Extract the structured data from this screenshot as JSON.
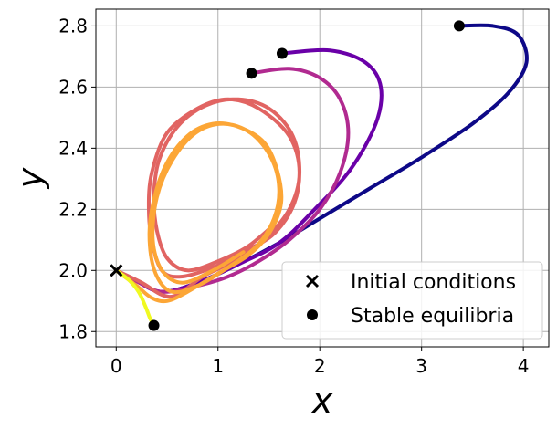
{
  "chart_data": {
    "type": "line",
    "title": "",
    "xlabel": "x",
    "ylabel": "y",
    "xlim": [
      -0.2,
      4.25
    ],
    "ylim": [
      1.75,
      2.855
    ],
    "xticks": [
      0,
      1,
      2,
      3,
      4
    ],
    "yticks": [
      1.8,
      2.0,
      2.2,
      2.4,
      2.6,
      2.8
    ],
    "xtick_labels": [
      "0",
      "1",
      "2",
      "3",
      "4"
    ],
    "ytick_labels": [
      "1.8",
      "2.0",
      "2.2",
      "2.4",
      "2.6",
      "2.8"
    ],
    "grid": true,
    "colormap": "plasma",
    "legend": {
      "placement": "lower right",
      "entries": [
        {
          "label": "Initial conditions",
          "marker": "x"
        },
        {
          "label": "Stable equilibria",
          "marker": "o"
        }
      ]
    },
    "initial_condition": {
      "x": 0.0,
      "y": 2.0
    },
    "stable_equilibria": [
      {
        "x": 3.37,
        "y": 2.8
      },
      {
        "x": 1.63,
        "y": 2.71
      },
      {
        "x": 1.33,
        "y": 2.645
      },
      {
        "x": 0.37,
        "y": 1.82
      }
    ],
    "trajectories": [
      {
        "color": "#0d0887",
        "points": [
          [
            0,
            2.0
          ],
          [
            0.2,
            1.965
          ],
          [
            0.45,
            1.93
          ],
          [
            0.8,
            1.96
          ],
          [
            1.2,
            2.02
          ],
          [
            1.6,
            2.09
          ],
          [
            2.0,
            2.17
          ],
          [
            2.5,
            2.27
          ],
          [
            3.0,
            2.37
          ],
          [
            3.5,
            2.48
          ],
          [
            3.85,
            2.58
          ],
          [
            4.03,
            2.68
          ],
          [
            3.95,
            2.77
          ],
          [
            3.7,
            2.8
          ],
          [
            3.37,
            2.8
          ]
        ]
      },
      {
        "color": "#6a00a8",
        "points": [
          [
            0,
            2.0
          ],
          [
            0.2,
            1.965
          ],
          [
            0.45,
            1.93
          ],
          [
            0.8,
            1.96
          ],
          [
            1.2,
            2.02
          ],
          [
            1.6,
            2.09
          ],
          [
            1.95,
            2.2
          ],
          [
            2.3,
            2.33
          ],
          [
            2.55,
            2.48
          ],
          [
            2.6,
            2.6
          ],
          [
            2.45,
            2.68
          ],
          [
            2.1,
            2.72
          ],
          [
            1.63,
            2.71
          ]
        ]
      },
      {
        "color": "#b12a90",
        "points": [
          [
            0,
            2.0
          ],
          [
            0.2,
            1.965
          ],
          [
            0.45,
            1.93
          ],
          [
            0.8,
            1.95
          ],
          [
            1.1,
            1.98
          ],
          [
            1.4,
            2.03
          ],
          [
            1.7,
            2.1
          ],
          [
            2.0,
            2.2
          ],
          [
            2.2,
            2.32
          ],
          [
            2.28,
            2.45
          ],
          [
            2.2,
            2.56
          ],
          [
            2.0,
            2.63
          ],
          [
            1.7,
            2.66
          ],
          [
            1.33,
            2.645
          ]
        ]
      },
      {
        "color": "#e16462",
        "points": [
          [
            0,
            2.0
          ],
          [
            0.25,
            1.96
          ],
          [
            0.45,
            1.92
          ],
          [
            0.6,
            1.92
          ],
          [
            0.85,
            1.98
          ],
          [
            1.15,
            2.03
          ],
          [
            1.45,
            2.1
          ],
          [
            1.7,
            2.2
          ],
          [
            1.8,
            2.32
          ],
          [
            1.7,
            2.44
          ],
          [
            1.4,
            2.53
          ],
          [
            1.1,
            2.56
          ],
          [
            0.8,
            2.53
          ],
          [
            0.5,
            2.45
          ],
          [
            0.35,
            2.32
          ],
          [
            0.32,
            2.2
          ],
          [
            0.36,
            2.08
          ],
          [
            0.46,
            1.995
          ],
          [
            0.65,
            1.98
          ],
          [
            0.95,
            2.01
          ],
          [
            1.25,
            2.06
          ],
          [
            1.55,
            2.12
          ],
          [
            1.75,
            2.22
          ],
          [
            1.8,
            2.34
          ],
          [
            1.72,
            2.45
          ],
          [
            1.5,
            2.53
          ],
          [
            1.2,
            2.56
          ],
          [
            0.88,
            2.54
          ],
          [
            0.6,
            2.47
          ],
          [
            0.42,
            2.36
          ],
          [
            0.37,
            2.24
          ],
          [
            0.4,
            2.13
          ],
          [
            0.5,
            2.04
          ],
          [
            0.7,
            2.0
          ],
          [
            1.0,
            2.03
          ],
          [
            1.3,
            2.08
          ],
          [
            1.55,
            2.15
          ]
        ]
      },
      {
        "color": "#fca636",
        "points": [
          [
            0,
            2.0
          ],
          [
            0.2,
            1.95
          ],
          [
            0.35,
            1.91
          ],
          [
            0.5,
            1.9
          ],
          [
            0.7,
            1.93
          ],
          [
            1.0,
            1.99
          ],
          [
            1.3,
            2.05
          ],
          [
            1.5,
            2.12
          ],
          [
            1.62,
            2.22
          ],
          [
            1.58,
            2.33
          ],
          [
            1.45,
            2.42
          ],
          [
            1.2,
            2.47
          ],
          [
            0.95,
            2.48
          ],
          [
            0.7,
            2.44
          ],
          [
            0.48,
            2.34
          ],
          [
            0.35,
            2.2
          ],
          [
            0.33,
            2.08
          ],
          [
            0.4,
            1.98
          ],
          [
            0.55,
            1.93
          ],
          [
            0.8,
            1.95
          ],
          [
            1.1,
            2.01
          ],
          [
            1.38,
            2.08
          ],
          [
            1.55,
            2.17
          ],
          [
            1.6,
            2.27
          ],
          [
            1.52,
            2.37
          ],
          [
            1.32,
            2.45
          ],
          [
            1.05,
            2.48
          ],
          [
            0.78,
            2.45
          ],
          [
            0.55,
            2.36
          ],
          [
            0.4,
            2.24
          ],
          [
            0.36,
            2.1
          ],
          [
            0.45,
            2.0
          ],
          [
            0.65,
            1.96
          ],
          [
            0.95,
            2.0
          ],
          [
            1.25,
            2.06
          ]
        ]
      },
      {
        "color": "#f0f921",
        "points": [
          [
            0,
            2.0
          ],
          [
            0.12,
            1.97
          ],
          [
            0.22,
            1.93
          ],
          [
            0.29,
            1.88
          ],
          [
            0.33,
            1.845
          ],
          [
            0.37,
            1.82
          ]
        ]
      }
    ]
  }
}
